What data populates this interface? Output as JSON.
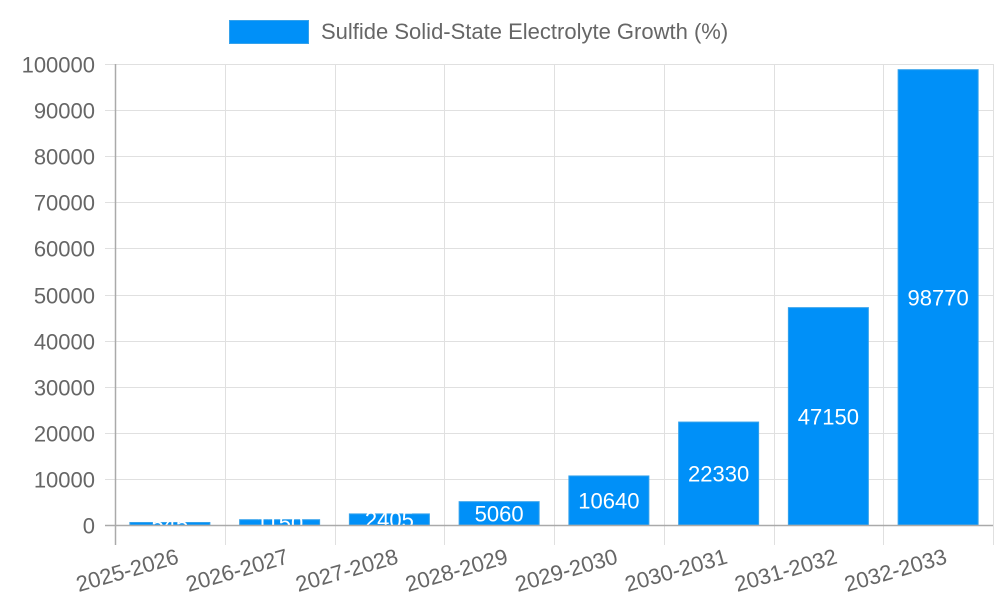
{
  "chart_data": {
    "type": "bar",
    "title": "",
    "legend": [
      "Sulfide Solid-State Electrolyte Growth (%)"
    ],
    "legend_position": "top",
    "xlabel": "",
    "ylabel": "",
    "categories": [
      "2025-2026",
      "2026-2027",
      "2027-2028",
      "2028-2029",
      "2029-2030",
      "2030-2031",
      "2031-2032",
      "2032-2033"
    ],
    "series": [
      {
        "name": "Sulfide Solid-State Electrolyte Growth (%)",
        "values": [
          545,
          1150,
          2405,
          5060,
          10640,
          22330,
          47150,
          98770
        ],
        "color": "#0090f8"
      }
    ],
    "ylim": [
      0,
      100000
    ],
    "yticks": [
      0,
      10000,
      20000,
      30000,
      40000,
      50000,
      60000,
      70000,
      80000,
      90000,
      100000
    ],
    "grid": true,
    "data_labels": true
  },
  "colors": {
    "bar": "#0090f8",
    "bar_border": "#36a2eb",
    "grid": "#e0e0e0",
    "axis": "#aaaaaa",
    "text": "#666666",
    "label": "#ffffff"
  }
}
